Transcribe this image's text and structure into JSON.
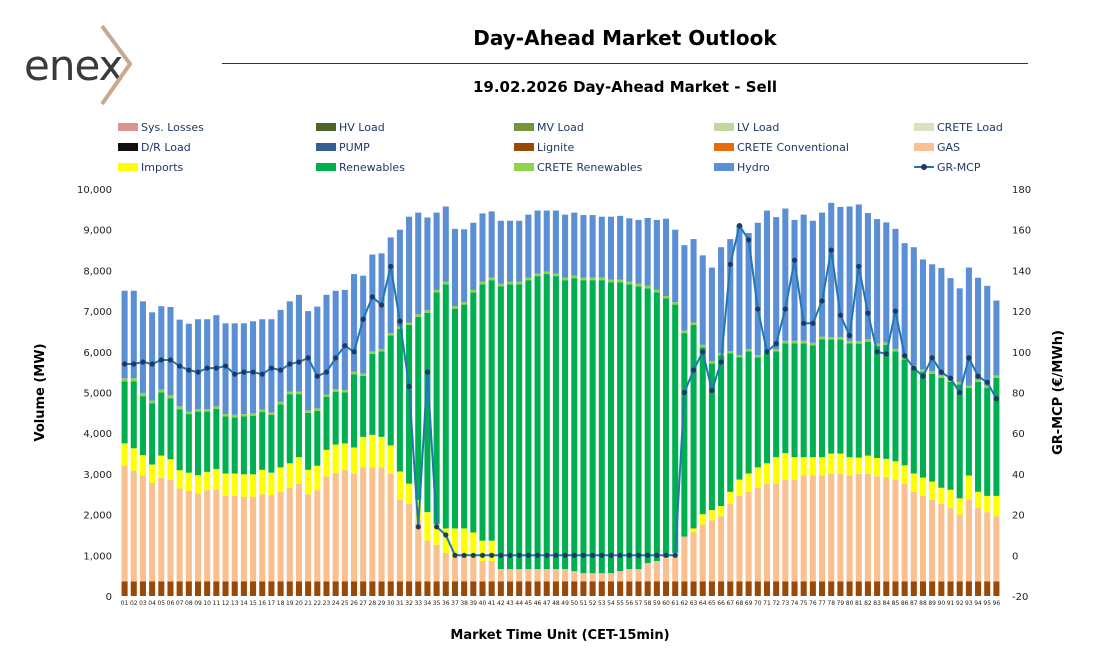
{
  "header": {
    "logo_text": "enex",
    "title": "Day-Ahead Market Outlook",
    "subtitle": "19.02.2026  Day-Ahead Market - Sell"
  },
  "colors": {
    "logo_text": "#3a3a3a",
    "logo_chevron": "#c8a88e",
    "rule": "#333333"
  },
  "legend": [
    {
      "name": "Sys. Losses",
      "color": "#d99594",
      "kind": "bar"
    },
    {
      "name": "HV Load",
      "color": "#4f6228",
      "kind": "bar"
    },
    {
      "name": "MV Load",
      "color": "#77933c",
      "kind": "bar"
    },
    {
      "name": "LV Load",
      "color": "#c3d69b",
      "kind": "bar"
    },
    {
      "name": "CRETE Load",
      "color": "#d7e4bd",
      "kind": "bar"
    },
    {
      "name": "D/R Load",
      "color": "#111111",
      "kind": "bar"
    },
    {
      "name": "PUMP",
      "color": "#365f91",
      "kind": "bar"
    },
    {
      "name": "Lignite",
      "color": "#984807",
      "kind": "bar"
    },
    {
      "name": "CRETE Conventional",
      "color": "#e46c0a",
      "kind": "bar"
    },
    {
      "name": "GAS",
      "color": "#fac090",
      "kind": "bar"
    },
    {
      "name": "Imports",
      "color": "#ffff00",
      "kind": "bar"
    },
    {
      "name": "Renewables",
      "color": "#00b050",
      "kind": "bar"
    },
    {
      "name": "CRETE Renewables",
      "color": "#92d050",
      "kind": "bar"
    },
    {
      "name": "Hydro",
      "color": "#5b8fd5",
      "kind": "bar"
    },
    {
      "name": "GR-MCP",
      "color": "#1f77b4",
      "kind": "line"
    }
  ],
  "chart_data": {
    "type": "bar",
    "stacked": true,
    "xlabel": "Market Time Unit (CET-15min)",
    "ylabel": "Volume (MW)",
    "y2label": "GR-MCP (€/MWh)",
    "ylim": [
      0,
      10000
    ],
    "y2lim": [
      -20,
      180
    ],
    "yticks": [
      "0",
      "1,000",
      "2,000",
      "3,000",
      "4,000",
      "5,000",
      "6,000",
      "7,000",
      "8,000",
      "9,000",
      "10,000"
    ],
    "y2ticks": [
      "-20",
      "0",
      "20",
      "40",
      "60",
      "80",
      "100",
      "120",
      "140",
      "160",
      "180"
    ],
    "categories": [
      "01",
      "02",
      "03",
      "04",
      "05",
      "06",
      "07",
      "08",
      "09",
      "10",
      "11",
      "12",
      "13",
      "14",
      "15",
      "16",
      "17",
      "18",
      "19",
      "20",
      "21",
      "22",
      "23",
      "24",
      "25",
      "26",
      "27",
      "28",
      "29",
      "30",
      "31",
      "32",
      "33",
      "34",
      "35",
      "36",
      "37",
      "38",
      "39",
      "40",
      "41",
      "42",
      "43",
      "44",
      "45",
      "46",
      "47",
      "48",
      "49",
      "50",
      "51",
      "52",
      "53",
      "54",
      "55",
      "56",
      "57",
      "58",
      "59",
      "60",
      "61",
      "62",
      "63",
      "64",
      "65",
      "66",
      "67",
      "68",
      "69",
      "70",
      "71",
      "72",
      "73",
      "74",
      "75",
      "76",
      "77",
      "78",
      "79",
      "80",
      "81",
      "82",
      "83",
      "84",
      "85",
      "86",
      "87",
      "88",
      "89",
      "90",
      "91",
      "92",
      "93",
      "94",
      "95",
      "96"
    ],
    "series": [
      {
        "name": "Lignite",
        "color": "#984807",
        "values": [
          360,
          360,
          360,
          360,
          360,
          360,
          360,
          360,
          360,
          360,
          360,
          360,
          360,
          360,
          360,
          360,
          360,
          360,
          360,
          360,
          360,
          360,
          360,
          360,
          360,
          360,
          360,
          360,
          360,
          360,
          360,
          360,
          360,
          360,
          360,
          360,
          360,
          360,
          360,
          360,
          360,
          360,
          360,
          360,
          360,
          360,
          360,
          360,
          360,
          360,
          360,
          360,
          360,
          360,
          360,
          360,
          360,
          360,
          360,
          360,
          360,
          360,
          360,
          360,
          360,
          360,
          360,
          360,
          360,
          360,
          360,
          360,
          360,
          360,
          360,
          360,
          360,
          360,
          360,
          360,
          360,
          360,
          360,
          360,
          360,
          360,
          360,
          360,
          360,
          360,
          360,
          360,
          360,
          360,
          360,
          360
        ]
      },
      {
        "name": "GAS",
        "color": "#fac090",
        "values": [
          2840,
          2720,
          2600,
          2420,
          2540,
          2500,
          2280,
          2220,
          2160,
          2240,
          2260,
          2100,
          2100,
          2080,
          2080,
          2140,
          2120,
          2200,
          2300,
          2400,
          2140,
          2240,
          2580,
          2660,
          2740,
          2640,
          2800,
          2800,
          2800,
          2640,
          2000,
          1900,
          1500,
          1000,
          900,
          700,
          600,
          600,
          600,
          500,
          500,
          300,
          300,
          300,
          300,
          300,
          300,
          300,
          300,
          250,
          200,
          200,
          200,
          200,
          250,
          300,
          300,
          450,
          500,
          600,
          700,
          1100,
          1200,
          1400,
          1500,
          1600,
          1900,
          2100,
          2200,
          2300,
          2400,
          2400,
          2500,
          2500,
          2600,
          2600,
          2600,
          2640,
          2640,
          2600,
          2640,
          2640,
          2580,
          2560,
          2500,
          2400,
          2200,
          2100,
          2000,
          1900,
          1800,
          1640,
          2000,
          1800,
          1700,
          1600
        ]
      },
      {
        "name": "Imports",
        "color": "#ffff00",
        "values": [
          550,
          550,
          500,
          450,
          550,
          500,
          450,
          450,
          450,
          450,
          500,
          550,
          550,
          550,
          550,
          600,
          550,
          600,
          600,
          650,
          600,
          600,
          650,
          700,
          650,
          650,
          750,
          800,
          750,
          700,
          700,
          500,
          500,
          700,
          500,
          600,
          700,
          700,
          600,
          500,
          500,
          0,
          0,
          0,
          0,
          0,
          0,
          0,
          0,
          0,
          0,
          0,
          0,
          0,
          0,
          0,
          0,
          0,
          0,
          0,
          0,
          0,
          100,
          250,
          250,
          250,
          300,
          400,
          450,
          500,
          500,
          650,
          650,
          550,
          450,
          450,
          450,
          500,
          500,
          450,
          400,
          450,
          450,
          450,
          450,
          450,
          450,
          450,
          450,
          400,
          450,
          400,
          600,
          400,
          400,
          500
        ]
      },
      {
        "name": "Renewables",
        "color": "#00b050",
        "values": [
          1520,
          1640,
          1450,
          1500,
          1550,
          1500,
          1500,
          1440,
          1560,
          1480,
          1480,
          1400,
          1380,
          1420,
          1440,
          1420,
          1420,
          1550,
          1700,
          1550,
          1400,
          1350,
          1300,
          1300,
          1250,
          1800,
          1500,
          1990,
          2100,
          2700,
          3500,
          3900,
          4500,
          4900,
          5700,
          6000,
          5400,
          5500,
          5900,
          6300,
          6400,
          6950,
          7000,
          7000,
          7100,
          7200,
          7250,
          7200,
          7100,
          7200,
          7200,
          7200,
          7200,
          7150,
          7100,
          7000,
          6950,
          6750,
          6600,
          6350,
          6100,
          5000,
          5000,
          4100,
          3600,
          3700,
          3400,
          3000,
          3000,
          2700,
          2700,
          2600,
          2700,
          2800,
          2800,
          2750,
          2900,
          2800,
          2800,
          2800,
          2800,
          2800,
          2750,
          2800,
          2700,
          2600,
          2600,
          2600,
          2650,
          2700,
          2650,
          2800,
          2150,
          2700,
          2650,
          2900
        ]
      },
      {
        "name": "CRETE Renewables",
        "color": "#92d050",
        "values": [
          80,
          80,
          80,
          70,
          70,
          70,
          70,
          60,
          60,
          60,
          60,
          60,
          60,
          60,
          60,
          60,
          60,
          60,
          60,
          60,
          60,
          60,
          60,
          60,
          60,
          60,
          60,
          60,
          60,
          60,
          60,
          60,
          60,
          60,
          60,
          60,
          60,
          60,
          60,
          60,
          60,
          60,
          60,
          60,
          60,
          60,
          60,
          60,
          60,
          60,
          60,
          60,
          60,
          60,
          60,
          60,
          60,
          60,
          60,
          60,
          60,
          60,
          60,
          60,
          60,
          60,
          60,
          60,
          60,
          60,
          60,
          60,
          60,
          60,
          60,
          60,
          60,
          60,
          60,
          60,
          60,
          60,
          60,
          60,
          60,
          60,
          60,
          60,
          60,
          60,
          60,
          60,
          60,
          60,
          60,
          60
        ]
      },
      {
        "name": "Hydro",
        "color": "#5b8fd5",
        "values": [
          2150,
          2150,
          2250,
          2170,
          2050,
          2170,
          2130,
          2160,
          2210,
          2210,
          2240,
          2230,
          2250,
          2230,
          2260,
          2220,
          2290,
          2260,
          2220,
          2380,
          2440,
          2500,
          2450,
          2420,
          2460,
          2400,
          2400,
          2380,
          2350,
          2350,
          2380,
          2600,
          2500,
          2280,
          1900,
          1850,
          1900,
          1790,
          1650,
          1680,
          1630,
          1550,
          1500,
          1500,
          1550,
          1550,
          1500,
          1550,
          1550,
          1550,
          1540,
          1540,
          1500,
          1550,
          1570,
          1560,
          1570,
          1670,
          1720,
          1900,
          1780,
          2100,
          2050,
          2200,
          2300,
          2600,
          2750,
          3200,
          2850,
          3250,
          3450,
          3240,
          3250,
          2970,
          3100,
          3000,
          3050,
          3300,
          3200,
          3300,
          3360,
          3100,
          3060,
          2950,
          2950,
          2800,
          2900,
          2700,
          2630,
          2640,
          2490,
          2300,
          2900,
          2500,
          2450,
          1840
        ]
      }
    ],
    "line": {
      "name": "GR-MCP",
      "color": "#1f77b4",
      "marker_color": "#1f3864",
      "axis": "y2",
      "values": [
        94,
        94,
        95,
        94,
        96,
        96,
        93,
        91,
        90,
        92,
        92,
        93,
        89,
        90,
        90,
        89,
        92,
        91,
        94,
        95,
        97,
        88,
        90,
        97,
        103,
        100,
        116,
        127,
        123,
        142,
        115,
        83,
        14,
        90,
        14,
        10,
        0,
        0,
        0,
        0,
        0,
        0,
        0,
        0,
        0,
        0,
        0,
        0,
        0,
        0,
        0,
        0,
        0,
        0,
        0,
        0,
        0,
        0,
        0,
        0,
        0,
        80,
        91,
        100,
        81,
        95,
        143,
        162,
        155,
        121,
        100,
        104,
        121,
        145,
        114,
        114,
        125,
        150,
        118,
        108,
        142,
        119,
        100,
        99,
        120,
        98,
        92,
        88,
        97,
        90,
        87,
        80,
        97,
        88,
        85,
        77
      ]
    }
  }
}
